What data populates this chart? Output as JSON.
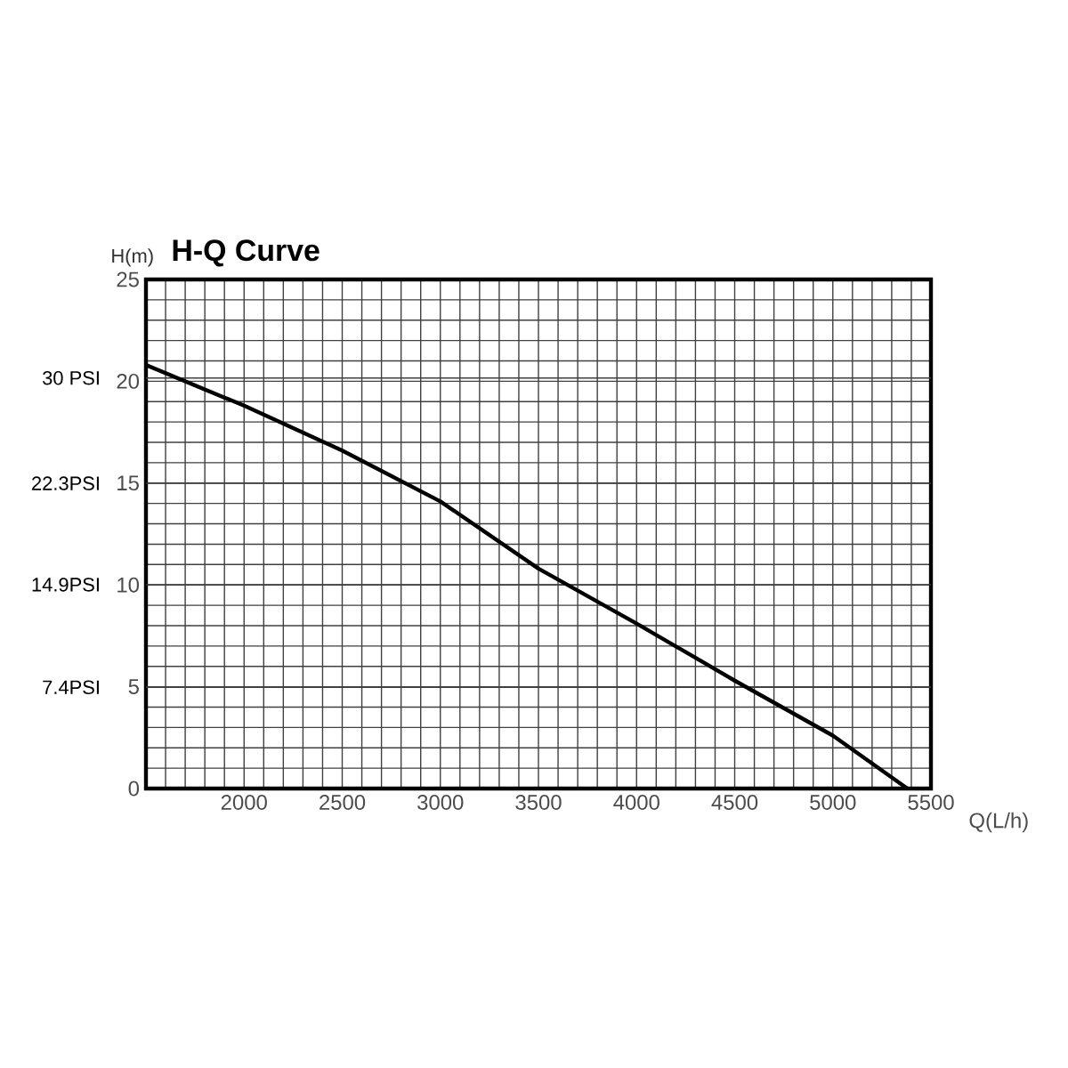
{
  "chart_data": {
    "type": "line",
    "title": "H-Q Curve",
    "xlabel": "Q(L/h)",
    "ylabel": "H(m)",
    "x": [
      1500,
      2000,
      2500,
      3000,
      3500,
      4000,
      4500,
      5000,
      5380
    ],
    "series": [
      {
        "color": "#000000",
        "values": [
          20.8,
          18.8,
          16.6,
          14.1,
          10.8,
          8.1,
          5.3,
          2.6,
          0
        ]
      }
    ],
    "xlim": [
      1500,
      5500
    ],
    "xticks": [
      {
        "value": 1500,
        "label": null
      },
      2000,
      2500,
      3000,
      3500,
      4000,
      4500,
      5000,
      5500
    ],
    "ylim": [
      0,
      25
    ],
    "yticks": [
      0,
      5,
      10,
      15,
      20,
      25
    ],
    "y2lim": [
      0,
      37.2
    ],
    "y2ticks": [
      {
        "value": 7.4,
        "label": "7.4PSI"
      },
      {
        "value": 14.9,
        "label": "14.9PSI"
      },
      {
        "value": 22.3,
        "label": "22.3PSI"
      },
      {
        "value": 30,
        "label": "30 PSI"
      }
    ],
    "grid": true,
    "marker": "none",
    "line_style": "solid"
  }
}
